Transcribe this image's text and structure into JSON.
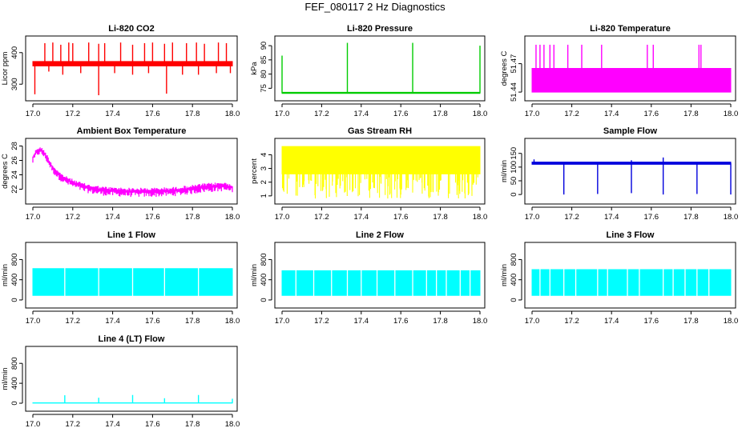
{
  "page_title": "FEF_080117  2 Hz Diagnostics",
  "chart_data": [
    {
      "type": "line",
      "title": "Li-820 CO2",
      "ylabel": "Licor ppm",
      "xlim": [
        17.0,
        18.0
      ],
      "ylim": [
        260,
        440
      ],
      "x_ticks": [
        "17.0",
        "17.2",
        "17.4",
        "17.6",
        "17.8",
        "18.0"
      ],
      "y_ticks": [
        300,
        400
      ],
      "color": "#ff0000",
      "series": [
        {
          "style": "baseline-band",
          "band": [
            [
              17.0,
              358,
              372
            ],
            [
              18.0,
              358,
              372
            ]
          ]
        },
        {
          "style": "spikes",
          "x": [
            17.06,
            17.1,
            17.14,
            17.18,
            17.2,
            17.28,
            17.33,
            17.36,
            17.44,
            17.5,
            17.56,
            17.6,
            17.66,
            17.7,
            17.77,
            17.82,
            17.86,
            17.93,
            17.97
          ],
          "y": [
            430,
            432,
            425,
            432,
            430,
            432,
            428,
            430,
            432,
            425,
            430,
            432,
            428,
            432,
            430,
            432,
            428,
            432,
            430
          ]
        },
        {
          "style": "spikes",
          "x": [
            17.01,
            17.08,
            17.15,
            17.24,
            17.33,
            17.41,
            17.5,
            17.58,
            17.67,
            17.75,
            17.83,
            17.92,
            17.99
          ],
          "y": [
            268,
            340,
            330,
            335,
            265,
            335,
            330,
            335,
            270,
            330,
            330,
            335,
            335
          ]
        }
      ]
    },
    {
      "type": "line",
      "title": "Li-820 Pressure",
      "ylabel": "kPa",
      "xlim": [
        17.0,
        18.0
      ],
      "ylim": [
        72.0,
        92.0
      ],
      "x_ticks": [
        "17.0",
        "17.2",
        "17.4",
        "17.6",
        "17.8",
        "18.0"
      ],
      "y_ticks": [
        75,
        80,
        85,
        90
      ],
      "color": "#00cc00",
      "series": [
        {
          "style": "baseline-band",
          "band": [
            [
              17.0,
              73.2,
              73.6
            ],
            [
              18.0,
              73.2,
              73.6
            ]
          ]
        },
        {
          "style": "spikes",
          "x": [
            17.0,
            17.33,
            17.66,
            18.0
          ],
          "y": [
            86.5,
            91.0,
            91.0,
            90.0
          ]
        }
      ]
    },
    {
      "type": "line",
      "title": "Li-820 Temperature",
      "ylabel": "degrees C",
      "xlim": [
        17.0,
        18.0
      ],
      "ylim": [
        51.435,
        51.495
      ],
      "x_ticks": [
        "17.0",
        "17.2",
        "17.4",
        "17.6",
        "17.8",
        "18.0"
      ],
      "y_ticks": [
        51.44,
        51.47
      ],
      "color": "#ff00ff",
      "series": [
        {
          "style": "baseline-band",
          "band": [
            [
              17.0,
              51.44,
              51.465
            ],
            [
              18.0,
              51.44,
              51.465
            ]
          ]
        },
        {
          "style": "spikes",
          "x": [
            17.02,
            17.04,
            17.06,
            17.09,
            17.11,
            17.18,
            17.25,
            17.35,
            17.58,
            17.61,
            17.84,
            17.85
          ],
          "y": [
            51.49,
            51.49,
            51.49,
            51.49,
            51.49,
            51.49,
            51.49,
            51.49,
            51.49,
            51.49,
            51.49,
            51.49
          ]
        }
      ]
    },
    {
      "type": "line",
      "title": "Ambient Box Temperature",
      "ylabel": "degrees C",
      "xlim": [
        17.0,
        18.0
      ],
      "ylim": [
        20.5,
        28.5
      ],
      "x_ticks": [
        "17.0",
        "17.2",
        "17.4",
        "17.6",
        "17.8",
        "18.0"
      ],
      "y_ticks": [
        22,
        24,
        26,
        28
      ],
      "color": "#ff00ff",
      "series": [
        {
          "style": "noisy-band",
          "x": [
            17.0,
            17.02,
            17.04,
            17.06,
            17.08,
            17.1,
            17.13,
            17.16,
            17.2,
            17.25,
            17.3,
            17.35,
            17.4,
            17.5,
            17.6,
            17.7,
            17.8,
            17.85,
            17.9,
            17.95,
            18.0
          ],
          "y_high": [
            26.8,
            27.8,
            27.9,
            27.4,
            26.4,
            25.4,
            24.5,
            23.9,
            23.4,
            22.9,
            22.6,
            22.4,
            22.3,
            22.2,
            22.2,
            22.3,
            22.6,
            22.8,
            22.9,
            23.0,
            22.8
          ],
          "y_low": [
            25.5,
            26.6,
            26.8,
            26.2,
            25.2,
            24.2,
            23.3,
            22.7,
            22.2,
            21.6,
            21.3,
            21.1,
            21.0,
            20.9,
            20.9,
            21.0,
            21.3,
            21.5,
            21.6,
            21.7,
            21.5
          ]
        }
      ]
    },
    {
      "type": "line",
      "title": "Gas Stream RH",
      "ylabel": "percent",
      "xlim": [
        17.0,
        18.0
      ],
      "ylim": [
        0.7,
        4.9
      ],
      "x_ticks": [
        "17.0",
        "17.2",
        "17.4",
        "17.6",
        "17.8",
        "18.0"
      ],
      "y_ticks": [
        1,
        2,
        3,
        4
      ],
      "color": "#ffff00",
      "series": [
        {
          "style": "baseline-band",
          "band": [
            [
              17.0,
              2.6,
              4.6
            ],
            [
              18.0,
              2.6,
              4.6
            ]
          ]
        },
        {
          "style": "noise-down",
          "x_range": [
            17.0,
            18.0
          ],
          "count": 150,
          "y_low_range": [
            0.8,
            2.4
          ]
        }
      ]
    },
    {
      "type": "line",
      "title": "Sample Flow",
      "ylabel": "ml/min",
      "xlim": [
        17.0,
        18.0
      ],
      "ylim": [
        -20,
        190
      ],
      "x_ticks": [
        "17.0",
        "17.2",
        "17.4",
        "17.6",
        "17.8",
        "18.0"
      ],
      "y_ticks": [
        0,
        50,
        100,
        150
      ],
      "color": "#0000dd",
      "series": [
        {
          "style": "baseline-band",
          "band": [
            [
              17.0,
              110,
              118
            ],
            [
              18.0,
              110,
              118
            ]
          ]
        },
        {
          "style": "spikes",
          "x": [
            17.16,
            17.33,
            17.5,
            17.66,
            17.83,
            18.0
          ],
          "y": [
            0,
            2,
            5,
            0,
            2,
            0
          ]
        },
        {
          "style": "spikes",
          "x": [
            17.01,
            17.5,
            17.66
          ],
          "y": [
            128,
            125,
            135
          ]
        }
      ]
    },
    {
      "type": "line",
      "title": "Line 1 Flow",
      "ylabel": "ml/min",
      "xlim": [
        17.0,
        18.0
      ],
      "ylim": [
        -80,
        1060
      ],
      "x_ticks": [
        "17.0",
        "17.2",
        "17.4",
        "17.6",
        "17.8",
        "18.0"
      ],
      "y_ticks": [
        0,
        400,
        800
      ],
      "color": "#00ffff",
      "series": [
        {
          "style": "baseline-band",
          "band": [
            [
              17.0,
              90,
              620
            ],
            [
              18.0,
              90,
              620
            ]
          ]
        },
        {
          "style": "gaps",
          "x": [
            17.16,
            17.33,
            17.5,
            17.66,
            17.83
          ]
        }
      ]
    },
    {
      "type": "line",
      "title": "Line 2 Flow",
      "ylabel": "ml/min",
      "xlim": [
        17.0,
        18.0
      ],
      "ylim": [
        -80,
        1060
      ],
      "x_ticks": [
        "17.0",
        "17.2",
        "17.4",
        "17.6",
        "17.8",
        "18.0"
      ],
      "y_ticks": [
        0,
        400,
        800
      ],
      "color": "#00ffff",
      "series": [
        {
          "style": "baseline-band",
          "band": [
            [
              17.0,
              90,
              580
            ],
            [
              18.0,
              90,
              580
            ]
          ]
        },
        {
          "style": "gaps",
          "x": [
            17.07,
            17.16,
            17.25,
            17.33,
            17.4,
            17.48,
            17.57,
            17.66,
            17.73,
            17.78,
            17.83,
            17.9,
            17.95
          ]
        }
      ]
    },
    {
      "type": "line",
      "title": "Line 3 Flow",
      "ylabel": "ml/min",
      "xlim": [
        17.0,
        18.0
      ],
      "ylim": [
        -80,
        1060
      ],
      "x_ticks": [
        "17.0",
        "17.2",
        "17.4",
        "17.6",
        "17.8",
        "18.0"
      ],
      "y_ticks": [
        0,
        400,
        800
      ],
      "color": "#00ffff",
      "series": [
        {
          "style": "baseline-band",
          "band": [
            [
              17.0,
              90,
              600
            ],
            [
              18.0,
              90,
              600
            ]
          ]
        },
        {
          "style": "gaps",
          "x": [
            17.04,
            17.09,
            17.16,
            17.22,
            17.33,
            17.38,
            17.48,
            17.54,
            17.66,
            17.71,
            17.77,
            17.83,
            17.89
          ]
        }
      ]
    },
    {
      "type": "line",
      "title": "Line 4 (LT) Flow",
      "ylabel": "ml/min",
      "xlim": [
        17.0,
        18.0
      ],
      "ylim": [
        -80,
        1060
      ],
      "x_ticks": [
        "17.0",
        "17.2",
        "17.4",
        "17.6",
        "17.8",
        "18.0"
      ],
      "y_ticks": [
        0,
        400,
        800
      ],
      "color": "#00ffff",
      "series": [
        {
          "style": "baseline-band",
          "band": [
            [
              17.0,
              2,
              8
            ],
            [
              18.0,
              2,
              8
            ]
          ]
        },
        {
          "style": "spikes",
          "x": [
            17.16,
            17.33,
            17.5,
            17.66,
            17.83,
            18.0
          ],
          "y": [
            160,
            110,
            165,
            100,
            165,
            90
          ]
        }
      ]
    }
  ]
}
